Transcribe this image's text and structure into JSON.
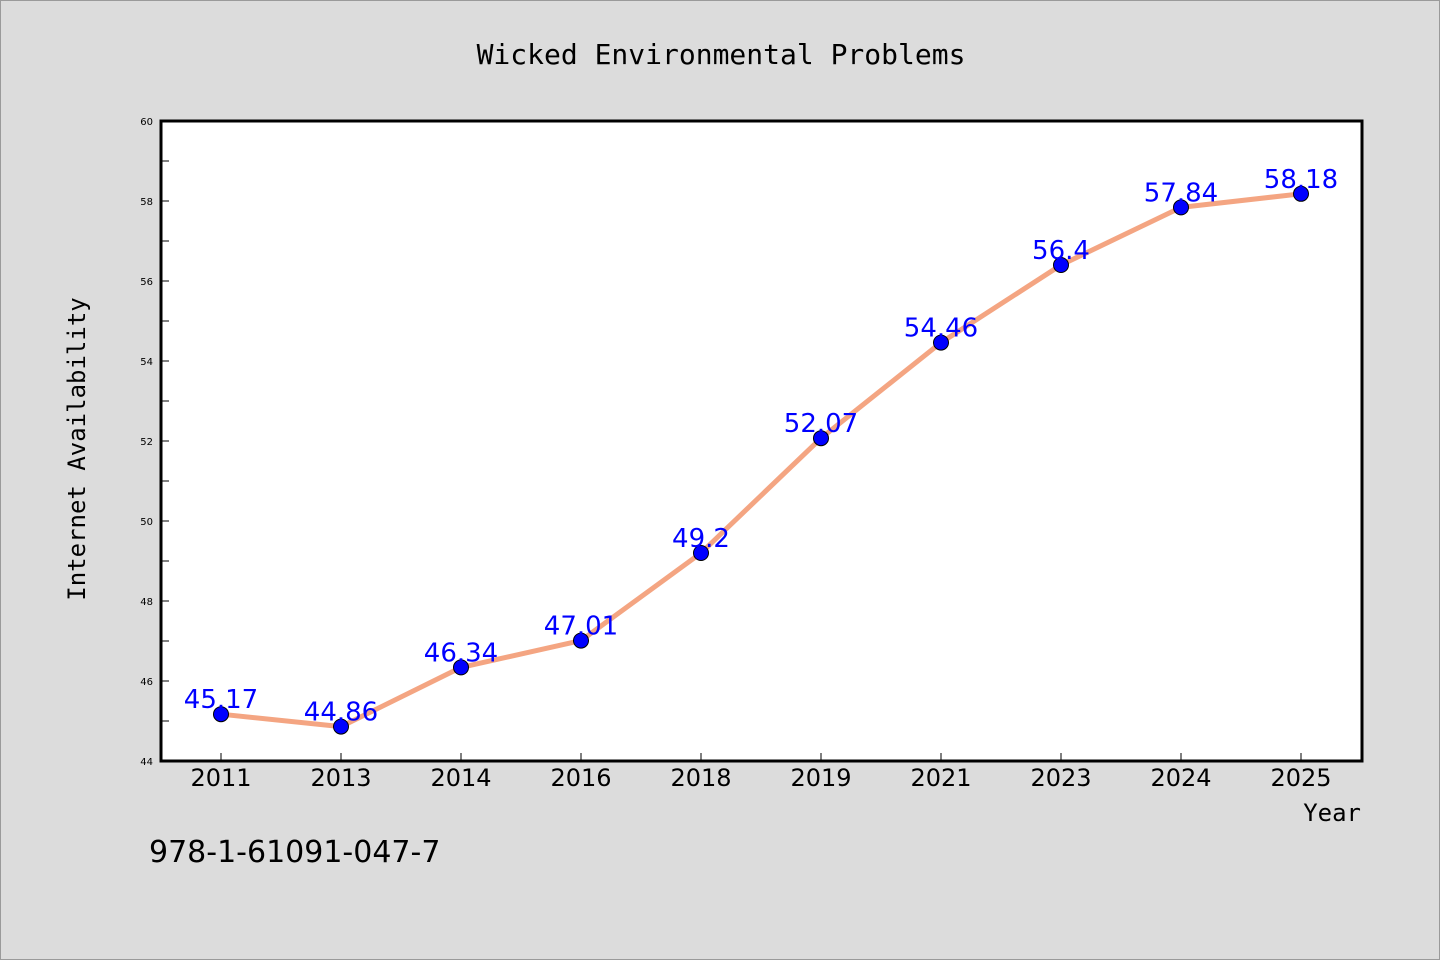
{
  "chart_data": {
    "type": "line",
    "title": "Wicked Environmental Problems",
    "xlabel": "Year",
    "ylabel": "Internet Availability",
    "categories": [
      "2011",
      "2013",
      "2014",
      "2016",
      "2018",
      "2019",
      "2021",
      "2023",
      "2024",
      "2025"
    ],
    "series": [
      {
        "values": [
          45.17,
          44.86,
          46.34,
          47.01,
          49.2,
          52.07,
          54.46,
          56.4,
          57.84,
          58.18
        ]
      }
    ],
    "data_labels": [
      "45.17",
      "44.86",
      "46.34",
      "47.01",
      "49.2",
      "52.07",
      "54.46",
      "56.4",
      "57.84",
      "58.18"
    ],
    "ylim": [
      44,
      60
    ],
    "yticks": [
      "44",
      "46",
      "48",
      "50",
      "52",
      "54",
      "56",
      "58",
      "60"
    ],
    "grid": false,
    "line_color": "#f4a582",
    "marker_color": "#0000ff",
    "label_color": "#0000ff"
  },
  "footnote": "978-1-61091-047-7"
}
